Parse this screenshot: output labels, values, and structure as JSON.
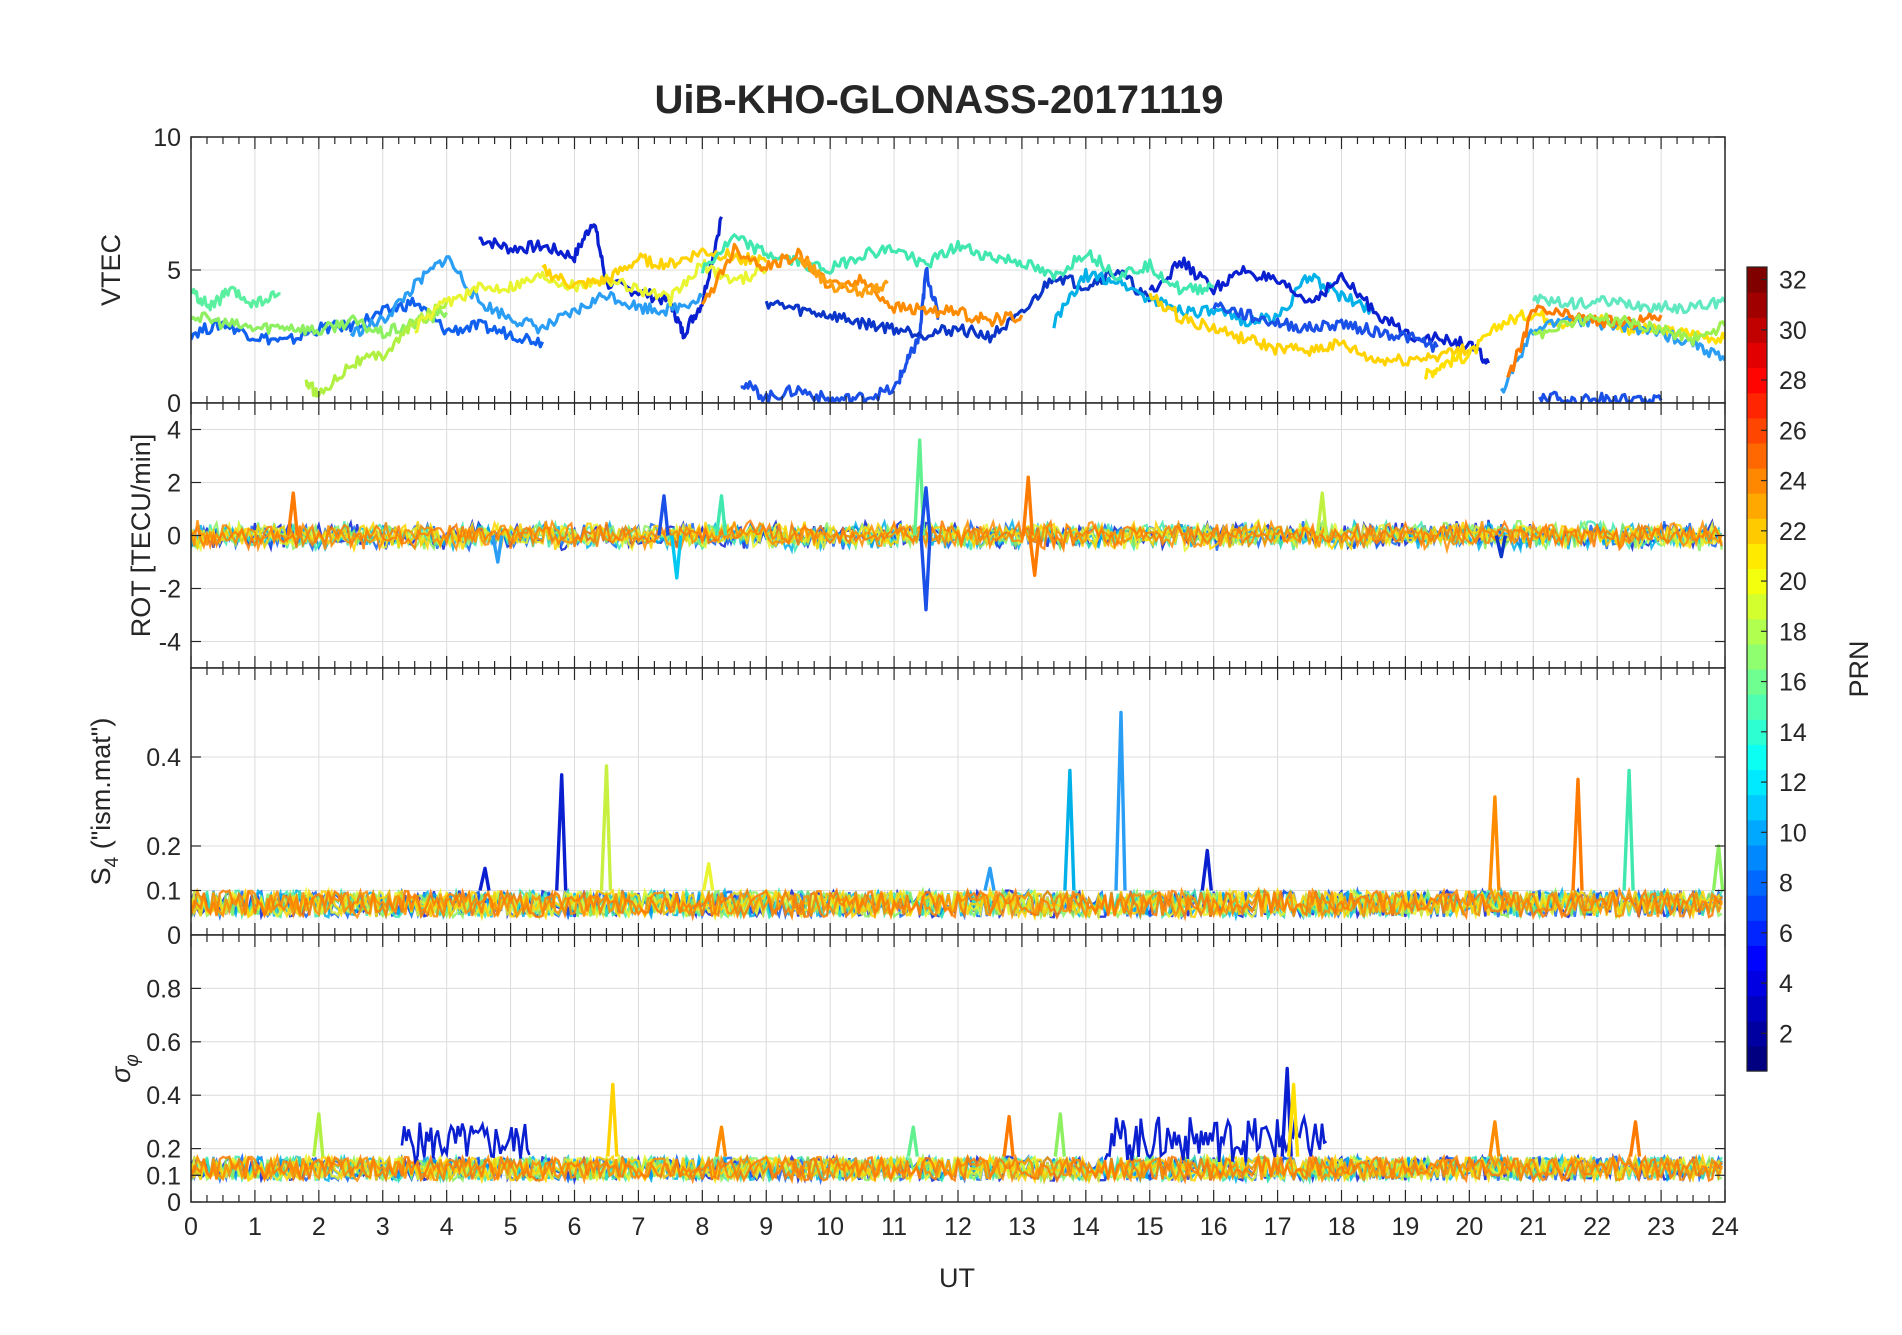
{
  "chart_data": {
    "type": "line",
    "title": "UiB-KHO-GLONASS-20171119",
    "xlabel": "UT",
    "xlim": [
      0,
      24
    ],
    "x_ticks": [
      "0",
      "1",
      "2",
      "3",
      "4",
      "5",
      "6",
      "7",
      "8",
      "9",
      "10",
      "11",
      "12",
      "13",
      "14",
      "15",
      "16",
      "17",
      "18",
      "19",
      "20",
      "21",
      "22",
      "23",
      "24"
    ],
    "grid": true,
    "colorbar": {
      "label": "PRN",
      "colormap": "jet",
      "range": [
        1,
        32
      ],
      "ticks": [
        "2",
        "4",
        "6",
        "8",
        "10",
        "12",
        "14",
        "16",
        "18",
        "20",
        "22",
        "24",
        "26",
        "28",
        "30",
        "32"
      ],
      "placement": "right"
    },
    "panels": [
      {
        "id": "vtec",
        "ylabel": "VTEC",
        "ylim": [
          0,
          10
        ],
        "y_ticks": [
          "0",
          "5",
          "10"
        ],
        "series": [
          {
            "color": "#0a1fd0",
            "x": [
              4.5,
              5,
              5.5,
              6,
              6.3,
              6.5,
              7,
              7.5,
              7.7,
              8,
              8.3
            ],
            "y": [
              6.2,
              5.8,
              5.9,
              5.5,
              6.9,
              4.5,
              4.2,
              3.8,
              2.6,
              3.8,
              7.0
            ]
          },
          {
            "color": "#1060f0",
            "x": [
              0,
              0.5,
              1,
              1.5,
              2,
              2.5,
              3,
              3.5,
              4,
              4.5,
              5,
              5.5
            ],
            "y": [
              2.6,
              3.0,
              2.5,
              2.3,
              2.8,
              2.9,
              3.4,
              3.8,
              2.7,
              2.9,
              2.6,
              2.3
            ]
          },
          {
            "color": "#2a9df5",
            "x": [
              2.5,
              3,
              3.5,
              4,
              4.5,
              5,
              5.5,
              6,
              6.5,
              7,
              7.5,
              8
            ],
            "y": [
              2.6,
              3.1,
              4.4,
              5.5,
              3.8,
              3.2,
              2.8,
              3.4,
              4.1,
              3.6,
              3.5,
              4.0
            ]
          },
          {
            "color": "#1a50e8",
            "x": [
              8.6,
              9,
              9.5,
              10,
              10.5,
              11,
              11.2,
              11.4,
              11.5,
              11.7
            ],
            "y": [
              0.8,
              0.2,
              0.5,
              0.1,
              0.2,
              0.5,
              1.5,
              2.5,
              5.0,
              3.2
            ]
          },
          {
            "color": "#0a35c8",
            "x": [
              9,
              9.5,
              10,
              10.5,
              11,
              11.5,
              12,
              12.5,
              13,
              13.5,
              14,
              14.5,
              15
            ],
            "y": [
              3.8,
              3.5,
              3.3,
              3.0,
              2.8,
              2.6,
              2.8,
              2.5,
              3.3,
              4.8,
              4.4,
              5.0,
              3.8
            ]
          },
          {
            "color": "#00b0e8",
            "x": [
              13.5,
              14,
              14.5,
              15,
              15.5,
              16,
              16.5,
              17,
              17.5,
              18,
              18.5
            ],
            "y": [
              3.0,
              4.8,
              4.6,
              3.9,
              3.5,
              3.4,
              3.1,
              3.2,
              4.8,
              4.0,
              3.5
            ]
          },
          {
            "color": "#0a1fd0",
            "x": [
              15,
              15.5,
              16,
              16.5,
              17,
              17.5,
              18,
              18.5,
              19,
              19.5,
              20,
              20.3
            ],
            "y": [
              4.2,
              5.3,
              4.3,
              5.0,
              4.5,
              3.8,
              4.7,
              3.5,
              2.6,
              2.4,
              2.2,
              1.5
            ]
          },
          {
            "color": "#1a50e8",
            "x": [
              16,
              16.5,
              17,
              17.5,
              18,
              18.5,
              19,
              19.5
            ],
            "y": [
              3.7,
              3.3,
              3.0,
              2.8,
              3.0,
              2.7,
              2.5,
              2.1
            ]
          },
          {
            "color": "#5af0a0",
            "x": [
              0,
              0.3,
              0.6,
              1,
              1.4
            ],
            "y": [
              4.2,
              3.6,
              4.2,
              3.7,
              4.1
            ]
          },
          {
            "color": "#8cf060",
            "x": [
              0,
              0.5,
              1,
              1.5,
              2,
              2.5,
              3,
              3.5,
              4
            ],
            "y": [
              3.3,
              3.0,
              2.8,
              2.9,
              2.7,
              3.1,
              2.6,
              3.0,
              3.4
            ]
          },
          {
            "color": "#b0f040",
            "x": [
              1.8,
              2,
              2.5,
              3,
              3.5,
              4
            ],
            "y": [
              0.8,
              0.3,
              1.5,
              1.8,
              3.0,
              3.8
            ]
          },
          {
            "color": "#e8f530",
            "x": [
              3.5,
              4,
              4.5,
              5,
              5.5,
              6,
              6.5,
              7,
              7.5,
              8,
              8.5,
              9
            ],
            "y": [
              2.8,
              3.8,
              4.3,
              4.4,
              4.8,
              4.4,
              4.7,
              4.3,
              3.9,
              5.2,
              4.6,
              5.0
            ]
          },
          {
            "color": "#ffd200",
            "x": [
              5.5,
              6,
              6.5,
              7,
              7.5,
              8,
              8.5,
              9
            ],
            "y": [
              5.0,
              4.4,
              4.6,
              5.4,
              5.2,
              5.7,
              5.5,
              5.3
            ]
          },
          {
            "color": "#40e8b0",
            "x": [
              8,
              8.5,
              9,
              9.5,
              10,
              10.5,
              11,
              11.5,
              12,
              12.5,
              13,
              13.5,
              14,
              14.5,
              15,
              15.5,
              16
            ],
            "y": [
              5.0,
              6.2,
              5.6,
              5.3,
              5.0,
              5.6,
              5.8,
              5.2,
              5.9,
              5.5,
              5.3,
              4.7,
              5.7,
              4.8,
              5.2,
              4.2,
              4.4
            ]
          },
          {
            "color": "#ff8c00",
            "x": [
              8,
              8.5,
              9,
              9.5,
              10,
              10.5,
              11,
              11.5,
              12,
              12.5,
              13
            ],
            "y": [
              3.6,
              5.8,
              5.1,
              5.6,
              4.4,
              4.6,
              3.6,
              3.5,
              3.4,
              3.1,
              3.3
            ]
          },
          {
            "color": "#ffa010",
            "x": [
              9.5,
              10,
              10.5,
              10.9
            ],
            "y": [
              5.5,
              4.4,
              4.2,
              4.5
            ]
          },
          {
            "color": "#ffd200",
            "x": [
              15,
              15.5,
              16,
              16.5,
              17,
              17.5,
              18,
              18.5,
              19,
              19.5,
              20
            ],
            "y": [
              4.0,
              3.2,
              2.8,
              2.4,
              2.0,
              2.0,
              2.2,
              1.6,
              1.6,
              1.8,
              2.0
            ]
          },
          {
            "color": "#ffe000",
            "x": [
              19.3,
              19.6,
              20,
              20.5,
              21,
              21.5,
              22,
              22.5,
              23,
              23.5,
              24
            ],
            "y": [
              1.0,
              1.5,
              1.8,
              3.0,
              3.4,
              3.0,
              3.2,
              2.8,
              2.7,
              2.6,
              2.4
            ]
          },
          {
            "color": "#2a9df5",
            "x": [
              20.5,
              21,
              21.5,
              22,
              22.5,
              23,
              23.5,
              24
            ],
            "y": [
              0.4,
              2.7,
              3.2,
              3.0,
              2.9,
              2.6,
              2.3,
              1.6
            ]
          },
          {
            "color": "#1a50e8",
            "x": [
              21.1,
              21.5,
              22,
              22.5,
              23
            ],
            "y": [
              0.3,
              0.1,
              0.2,
              0.1,
              0.1
            ]
          },
          {
            "color": "#ff7a00",
            "x": [
              20.6,
              21,
              21.5,
              22,
              22.5,
              23
            ],
            "y": [
              0.8,
              3.5,
              3.3,
              3.1,
              3.0,
              3.3
            ]
          },
          {
            "color": "#60e8c0",
            "x": [
              21,
              21.5,
              22,
              22.5,
              23,
              23.5,
              24
            ],
            "y": [
              3.9,
              3.7,
              3.8,
              3.7,
              3.6,
              3.6,
              3.8
            ]
          },
          {
            "color": "#9cf050",
            "x": [
              21,
              21.5,
              22,
              22.5,
              23,
              23.5,
              24
            ],
            "y": [
              2.5,
              3.0,
              3.2,
              3.0,
              2.8,
              2.4,
              2.9
            ]
          }
        ]
      },
      {
        "id": "rot",
        "ylabel": "ROT [TECU/min]",
        "ylim": [
          -5,
          5
        ],
        "y_ticks": [
          "-4",
          "-2",
          "0",
          "2",
          "4"
        ],
        "noise_band": 0.4,
        "spikes": [
          {
            "x": 1.6,
            "y": 1.6,
            "color": "#ff7a00"
          },
          {
            "x": 4.8,
            "y": -1.0,
            "color": "#2a9df5"
          },
          {
            "x": 7.4,
            "y": 1.5,
            "color": "#1a50e8"
          },
          {
            "x": 7.6,
            "y": -1.6,
            "color": "#00c8f0"
          },
          {
            "x": 8.3,
            "y": 1.5,
            "color": "#40e8b0"
          },
          {
            "x": 11.4,
            "y": 3.6,
            "color": "#60f090"
          },
          {
            "x": 11.5,
            "y": 1.8,
            "color": "#1a50e8"
          },
          {
            "x": 11.5,
            "y": -2.8,
            "color": "#1a50e8"
          },
          {
            "x": 13.1,
            "y": 2.2,
            "color": "#ff7a00"
          },
          {
            "x": 13.2,
            "y": -1.5,
            "color": "#ff7a00"
          },
          {
            "x": 17.7,
            "y": 1.6,
            "color": "#c0f040"
          },
          {
            "x": 20.5,
            "y": -0.8,
            "color": "#0a35c8"
          }
        ]
      },
      {
        "id": "s4",
        "ylabel": "S4 (\"ism.mat\")",
        "ylim": [
          0,
          0.6
        ],
        "y_ticks": [
          "0",
          "0.1",
          "0.2",
          "0.4"
        ],
        "baseline": [
          0.04,
          0.1
        ],
        "spikes": [
          {
            "x": 4.6,
            "y": 0.15,
            "color": "#0a1fd0"
          },
          {
            "x": 5.8,
            "y": 0.36,
            "color": "#0a1fd0"
          },
          {
            "x": 6.5,
            "y": 0.38,
            "color": "#c8f040"
          },
          {
            "x": 8.1,
            "y": 0.16,
            "color": "#e8f530"
          },
          {
            "x": 12.5,
            "y": 0.15,
            "color": "#2a9df5"
          },
          {
            "x": 13.75,
            "y": 0.37,
            "color": "#00b0e8"
          },
          {
            "x": 14.55,
            "y": 0.5,
            "color": "#2a9df5"
          },
          {
            "x": 15.9,
            "y": 0.19,
            "color": "#0a1fd0"
          },
          {
            "x": 20.4,
            "y": 0.31,
            "color": "#ff8c00"
          },
          {
            "x": 21.7,
            "y": 0.35,
            "color": "#ff7a00"
          },
          {
            "x": 22.5,
            "y": 0.37,
            "color": "#40e8b0"
          },
          {
            "x": 23.9,
            "y": 0.2,
            "color": "#8cf060"
          }
        ]
      },
      {
        "id": "sigma",
        "ylabel": "σφ",
        "ylim": [
          0,
          1
        ],
        "y_ticks": [
          "0",
          "0.1",
          "0.2",
          "0.4",
          "0.6",
          "0.8"
        ],
        "baseline": [
          0.08,
          0.17
        ],
        "bursts": [
          {
            "x0": 3.3,
            "x1": 5.3,
            "ymax": 0.3,
            "color": "#0a1fd0"
          },
          {
            "x0": 14.3,
            "x1": 17.8,
            "ymax": 0.32,
            "color": "#0a1fd0"
          }
        ],
        "spikes": [
          {
            "x": 2.0,
            "y": 0.33,
            "color": "#b0f040"
          },
          {
            "x": 6.6,
            "y": 0.44,
            "color": "#ffd200"
          },
          {
            "x": 8.3,
            "y": 0.28,
            "color": "#ff8c00"
          },
          {
            "x": 11.3,
            "y": 0.28,
            "color": "#60f090"
          },
          {
            "x": 12.8,
            "y": 0.32,
            "color": "#ff7a00"
          },
          {
            "x": 13.6,
            "y": 0.33,
            "color": "#8cf060"
          },
          {
            "x": 17.15,
            "y": 0.5,
            "color": "#0a1fd0"
          },
          {
            "x": 17.25,
            "y": 0.44,
            "color": "#ffe000"
          },
          {
            "x": 20.4,
            "y": 0.3,
            "color": "#ff8c00"
          },
          {
            "x": 22.6,
            "y": 0.3,
            "color": "#ff7a00"
          }
        ]
      }
    ]
  }
}
